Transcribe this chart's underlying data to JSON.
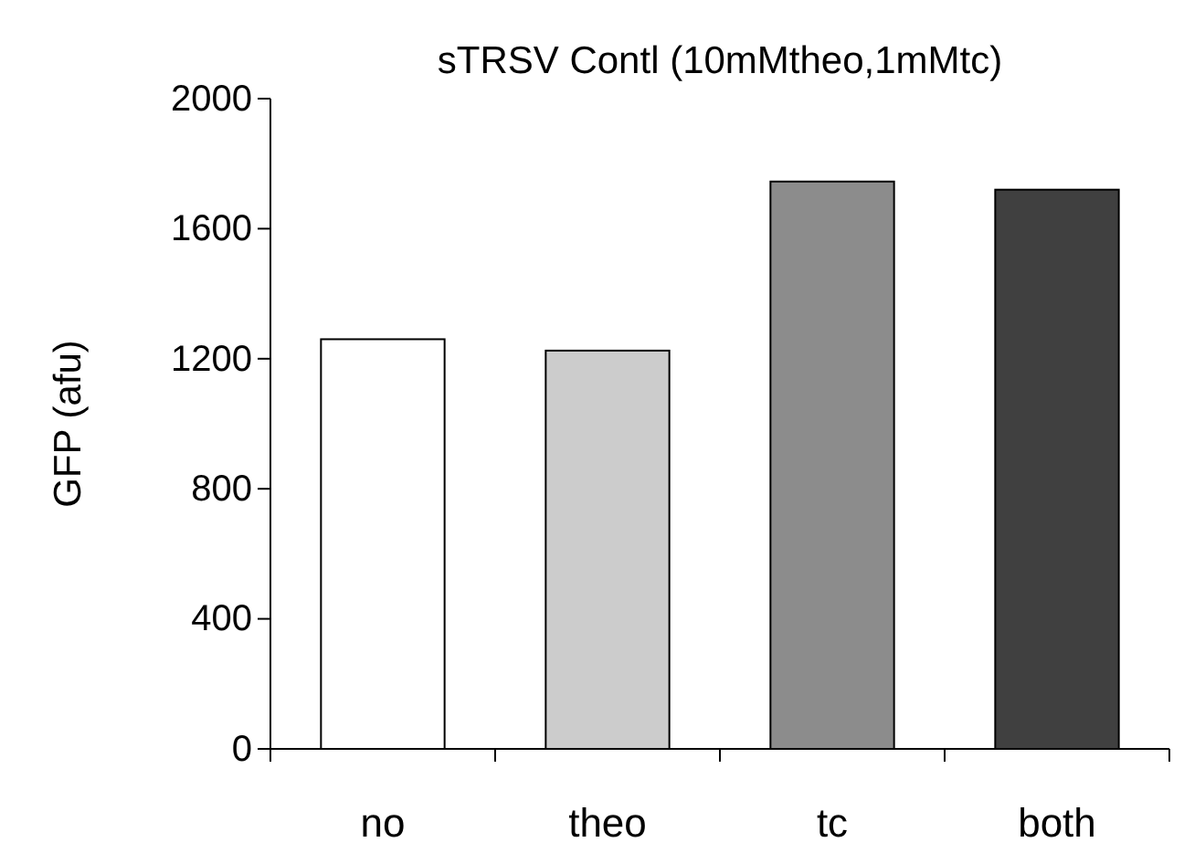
{
  "chart_data": {
    "type": "bar",
    "title": "sTRSV Contl (10mMtheo,1mMtc)",
    "ylabel": "GFP (afu)",
    "categories": [
      "no",
      "theo",
      "tc",
      "both"
    ],
    "values": [
      1260,
      1225,
      1745,
      1720
    ],
    "colors": [
      "#ffffff",
      "#cccccc",
      "#8c8c8c",
      "#404040"
    ],
    "ylim": [
      0,
      2000
    ],
    "yticks": [
      0,
      400,
      800,
      1200,
      1600,
      2000
    ],
    "grid": false
  }
}
